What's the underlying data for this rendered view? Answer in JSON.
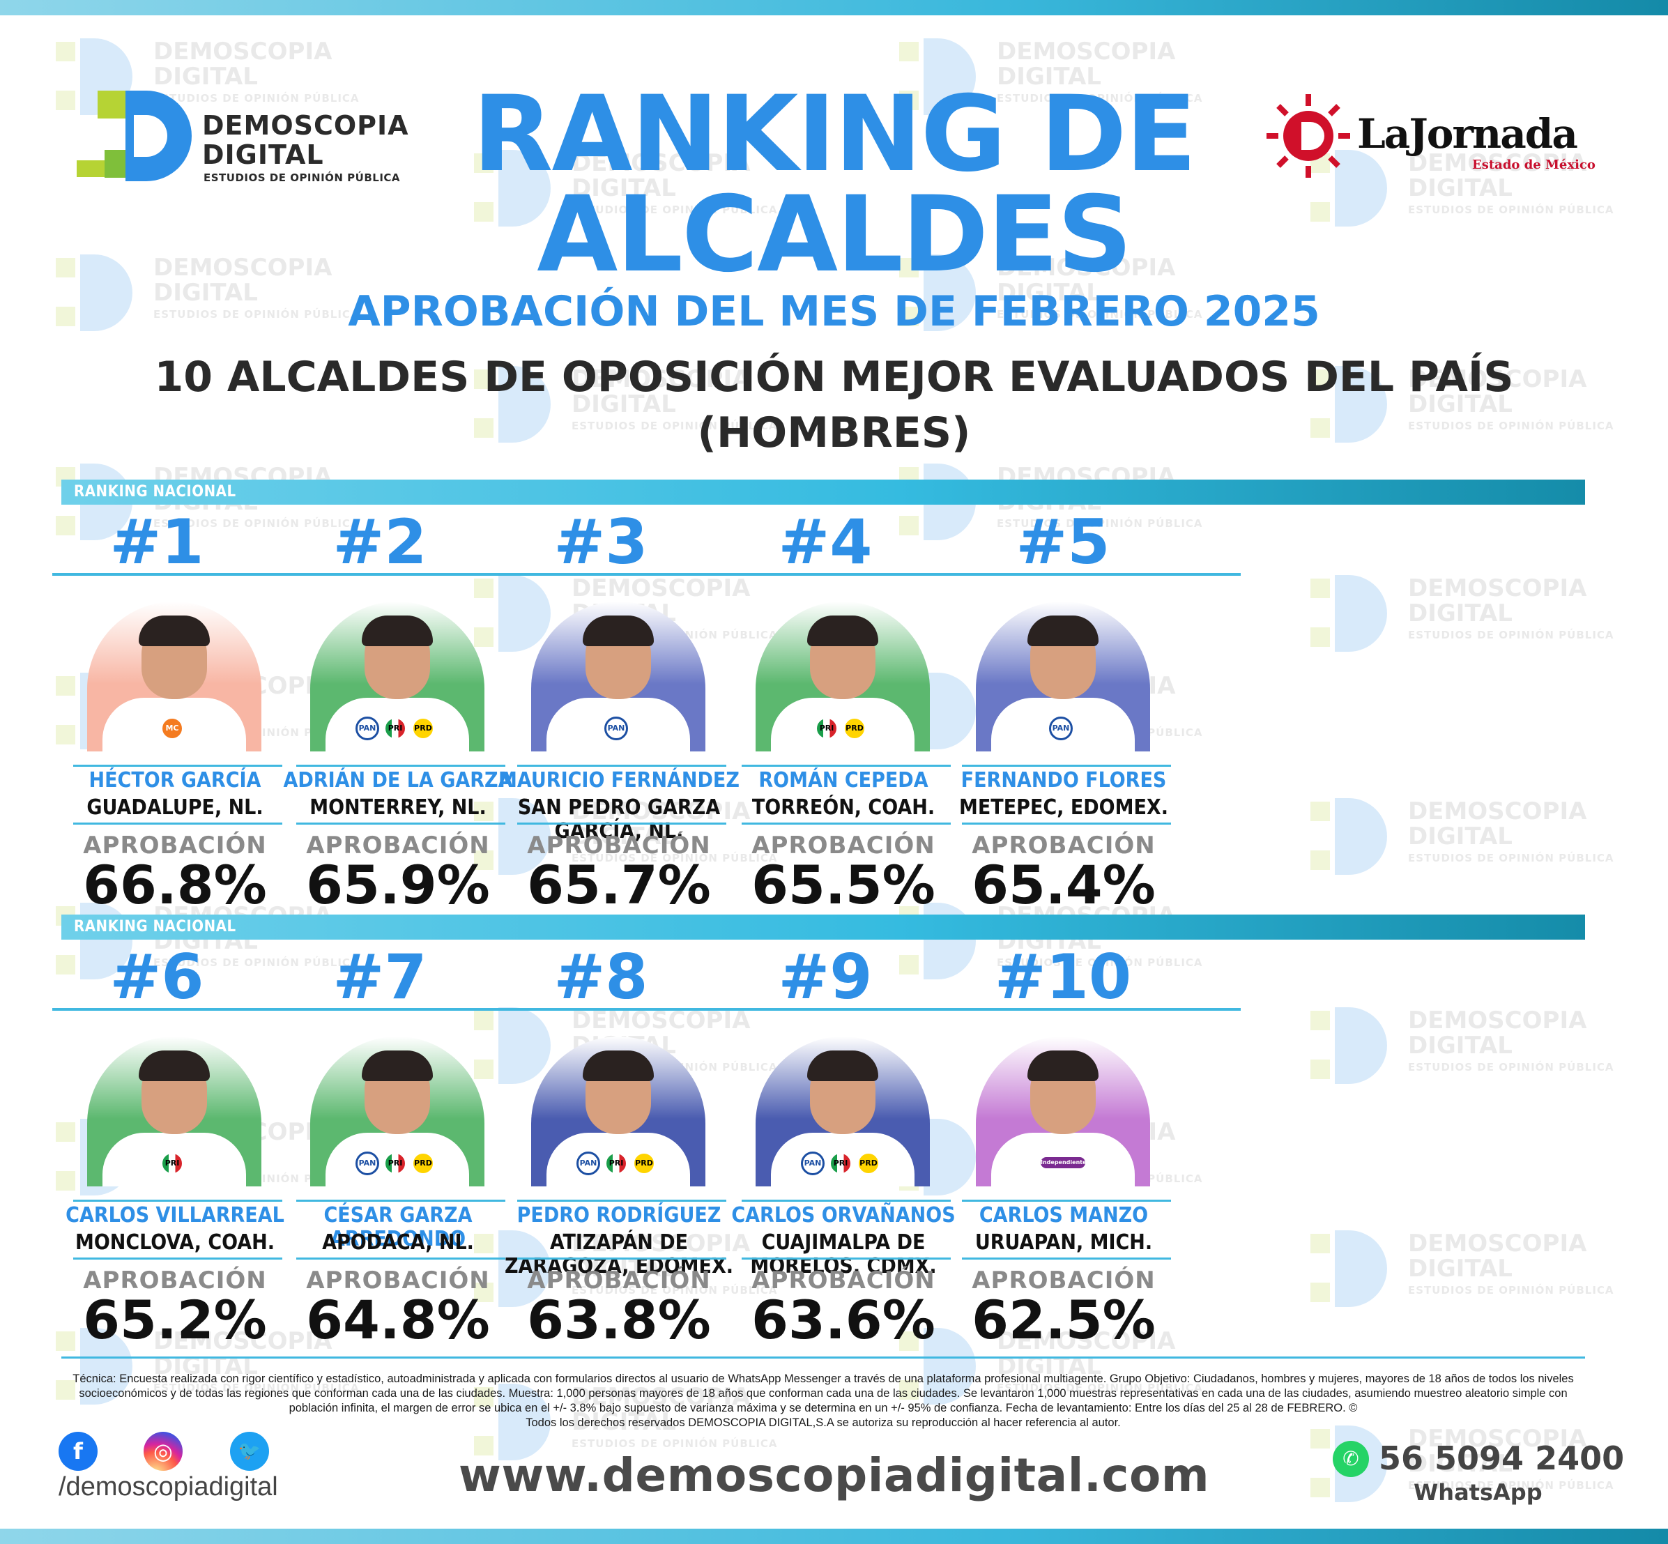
{
  "brand": {
    "demoscopia_line1": "DEMOSCOPIA",
    "demoscopia_line2": "DIGITAL",
    "demoscopia_tagline": "ESTUDIOS DE OPINIÓN PÚBLICA",
    "jornada_name": "LaJornada",
    "jornada_sub": "Estado de México"
  },
  "title": {
    "line1": "RANKING DE",
    "line2": "ALCALDES",
    "subtitle": "APROBACIÓN DEL MES DE FEBRERO 2025",
    "headline": "10 ALCALDES DE OPOSICIÓN MEJOR EVALUADOS DEL PAÍS",
    "headline2": "(HOMBRES)"
  },
  "section_label": "RANKING NACIONAL",
  "approval_label": "APROBACIÓN",
  "ranking": [
    {
      "rank": "#1",
      "name": "HÉCTOR GARCÍA",
      "city": "GUADALUPE, NL.",
      "approval": "66.8%",
      "bg": "#f8b6a4",
      "parties": [
        "MC"
      ]
    },
    {
      "rank": "#2",
      "name": "ADRIÁN DE LA GARZA",
      "city": "MONTERREY, NL.",
      "approval": "65.9%",
      "bg": "#5cb86f",
      "parties": [
        "PAN",
        "PRI",
        "PRD"
      ]
    },
    {
      "rank": "#3",
      "name": "MAURICIO FERNÁNDEZ",
      "city": "SAN PEDRO GARZA GARCÍA, NL.",
      "approval": "65.7%",
      "bg": "#6a78c6",
      "parties": [
        "PAN"
      ]
    },
    {
      "rank": "#4",
      "name": "ROMÁN CEPEDA",
      "city": "TORREÓN, COAH.",
      "approval": "65.5%",
      "bg": "#5cb86f",
      "parties": [
        "PRI",
        "PRD"
      ]
    },
    {
      "rank": "#5",
      "name": "FERNANDO FLORES",
      "city": "METEPEC, EDOMEX.",
      "approval": "65.4%",
      "bg": "#6a78c6",
      "parties": [
        "PAN"
      ]
    },
    {
      "rank": "#6",
      "name": "CARLOS VILLARREAL",
      "city": "MONCLOVA, COAH.",
      "approval": "65.2%",
      "bg": "#5cb86f",
      "parties": [
        "PRI"
      ]
    },
    {
      "rank": "#7",
      "name": "CÉSAR GARZA ARREDONDO",
      "city": "APODACA, NL.",
      "approval": "64.8%",
      "bg": "#5cb86f",
      "parties": [
        "PAN",
        "PRI",
        "PRD"
      ]
    },
    {
      "rank": "#8",
      "name": "PEDRO RODRÍGUEZ",
      "city": "ATIZAPÁN DE ZARAGOZA, EDOMEX.",
      "approval": "63.8%",
      "bg": "#4a5cb0",
      "parties": [
        "PAN",
        "PRI",
        "PRD"
      ]
    },
    {
      "rank": "#9",
      "name": "CARLOS ORVAÑANOS",
      "city": "CUAJIMALPA DE MORELOS, CDMX.",
      "approval": "63.6%",
      "bg": "#4a5cb0",
      "parties": [
        "PAN",
        "PRI",
        "PRD"
      ]
    },
    {
      "rank": "#10",
      "name": "CARLOS MANZO",
      "city": "URUAPAN, MICH.",
      "approval": "62.5%",
      "bg": "#c47ad4",
      "parties": [
        "Independiente"
      ]
    }
  ],
  "footer": {
    "tecnica": "Técnica: Encuesta realizada con rigor científico y estadístico, autoadministrada y aplicada con formularios directos al usuario de WhatsApp Messenger a través de una plataforma profesional multiagente. Grupo Objetivo: Ciudadanos, hombres y mujeres, mayores de 18 años de todos los niveles socioeconómicos y de todas las regiones que conforman cada una de las ciudades. Muestra: 1,000 personas mayores de 18 años que conforman cada una de las ciudades. Se levantaron 1,000 muestras representativas en cada una de las ciudades, asumiendo muestreo aleatorio simple con población infinita, el margen de error se ubica en el +/- 3.8% bajo supuesto de varianza máxima y se determina en un +/- 95% de confianza. Fecha de levantamiento: Entre los días del 25 al 28 de FEBRERO. ©",
    "rights": "Todos los derechos reservados DEMOSCOPIA DIGITAL,S.A se autoriza su reproducción al hacer referencia al autor.",
    "handle": "/demoscopiadigital",
    "website": "www.demoscopiadigital.com",
    "phone": "56 5094 2400",
    "whatsapp": "WhatsApp"
  },
  "colors": {
    "accent_blue": "#2e8fe6",
    "bar_cyan": "#35bbe0",
    "bar_dark": "#158ca9"
  }
}
